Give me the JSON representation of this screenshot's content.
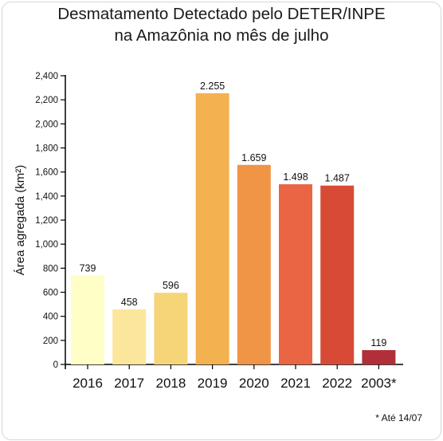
{
  "chart_data": {
    "type": "bar",
    "title_line1": "Desmatamento Detectado pelo DETER/INPE",
    "title_line2": "na Amazônia no mês de julho",
    "ylabel": "Área agregada (km²)",
    "xlabel": "",
    "categories": [
      "2016",
      "2017",
      "2018",
      "2019",
      "2020",
      "2021",
      "2022",
      "2003*"
    ],
    "values": [
      739,
      458,
      596,
      2255,
      1659,
      1498,
      1487,
      119
    ],
    "value_labels": [
      "739",
      "458",
      "596",
      "2.255",
      "1.659",
      "1.498",
      "1.487",
      "119"
    ],
    "ylim": [
      0,
      2400
    ],
    "yticks": [
      0,
      200,
      400,
      600,
      800,
      1000,
      1200,
      1400,
      1600,
      1800,
      2000,
      2200,
      2400
    ],
    "ytick_labels": [
      "0",
      "200",
      "400",
      "600",
      "800",
      "1,000",
      "1,200",
      "1,400",
      "1,600",
      "1,800",
      "2,000",
      "2,200",
      "2,400"
    ],
    "colors": [
      "#fffec7",
      "#fbe69b",
      "#f6d578",
      "#f4b150",
      "#f09445",
      "#e96544",
      "#d94a36",
      "#b02f38"
    ],
    "grid": false,
    "legend": "none",
    "footnote": "* Até 14/07"
  }
}
